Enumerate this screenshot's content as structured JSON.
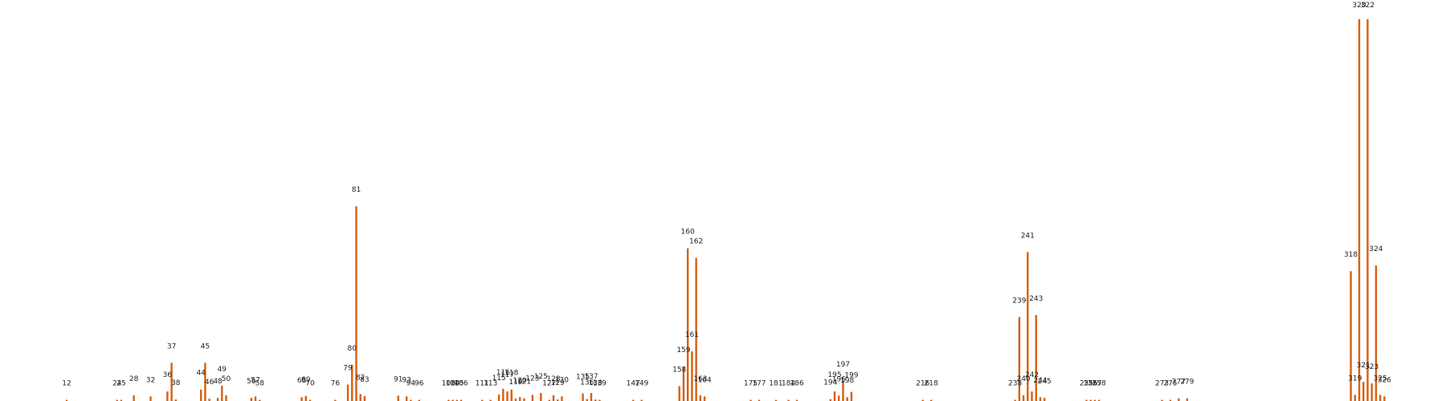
{
  "chart_data": {
    "type": "bar",
    "title": "",
    "xlabel": "",
    "ylabel": "",
    "grid": false,
    "ylim": [
      0,
      100
    ],
    "color": "#d95f0e",
    "categories": [
      "12",
      "24",
      "25",
      "28",
      "32",
      "36",
      "37",
      "38",
      "44",
      "45",
      "46",
      "48",
      "49",
      "50",
      "56",
      "57",
      "58",
      "68",
      "69",
      "70",
      "76",
      "79",
      "80",
      "81",
      "82",
      "83",
      "91",
      "93",
      "94",
      "96",
      "103",
      "104",
      "105",
      "106",
      "111",
      "113",
      "115",
      "116",
      "117",
      "118",
      "119",
      "120",
      "121",
      "123",
      "125",
      "127",
      "128",
      "129",
      "130",
      "135",
      "136",
      "137",
      "138",
      "139",
      "147",
      "149",
      "158",
      "159",
      "160",
      "161",
      "162",
      "163",
      "164",
      "175",
      "177",
      "181",
      "184",
      "186",
      "194",
      "195",
      "196",
      "197",
      "198",
      "199",
      "216",
      "218",
      "238",
      "239",
      "240",
      "241",
      "242",
      "243",
      "244",
      "245",
      "255",
      "256",
      "257",
      "258",
      "273",
      "275",
      "277",
      "279",
      "318",
      "319",
      "320",
      "321",
      "322",
      "323",
      "324",
      "325",
      "326"
    ],
    "values": [
      0.3,
      0.3,
      0.3,
      1.5,
      1.2,
      2.5,
      10,
      0.4,
      3,
      10,
      0.6,
      0.8,
      4,
      1.5,
      0.8,
      1.2,
      0.3,
      1,
      1.3,
      0.3,
      0.3,
      4.3,
      9.5,
      51,
      1.8,
      1.3,
      1.4,
      1.2,
      0.3,
      0.3,
      0.3,
      0.3,
      0.3,
      0.3,
      0.3,
      0.3,
      1.7,
      3.2,
      2.5,
      3,
      0.6,
      1,
      0.7,
      1.6,
      2.1,
      0.3,
      1.5,
      0.4,
      1.2,
      2,
      0.5,
      2.1,
      0.4,
      0.3,
      0.3,
      0.3,
      3.9,
      9,
      40,
      13,
      37.5,
      1.5,
      1.2,
      0.3,
      0.3,
      0.3,
      0.3,
      0.3,
      0.5,
      2.5,
      1.4,
      5.3,
      1,
      2.4,
      0.3,
      0.3,
      0.3,
      22,
      1.5,
      39,
      2.5,
      22.5,
      1,
      0.8,
      0.3,
      0.3,
      0.3,
      0.3,
      0.3,
      0.3,
      0.7,
      0.7,
      34,
      1.6,
      100,
      5,
      100,
      4.6,
      35.5,
      1.6,
      1.2
    ]
  }
}
